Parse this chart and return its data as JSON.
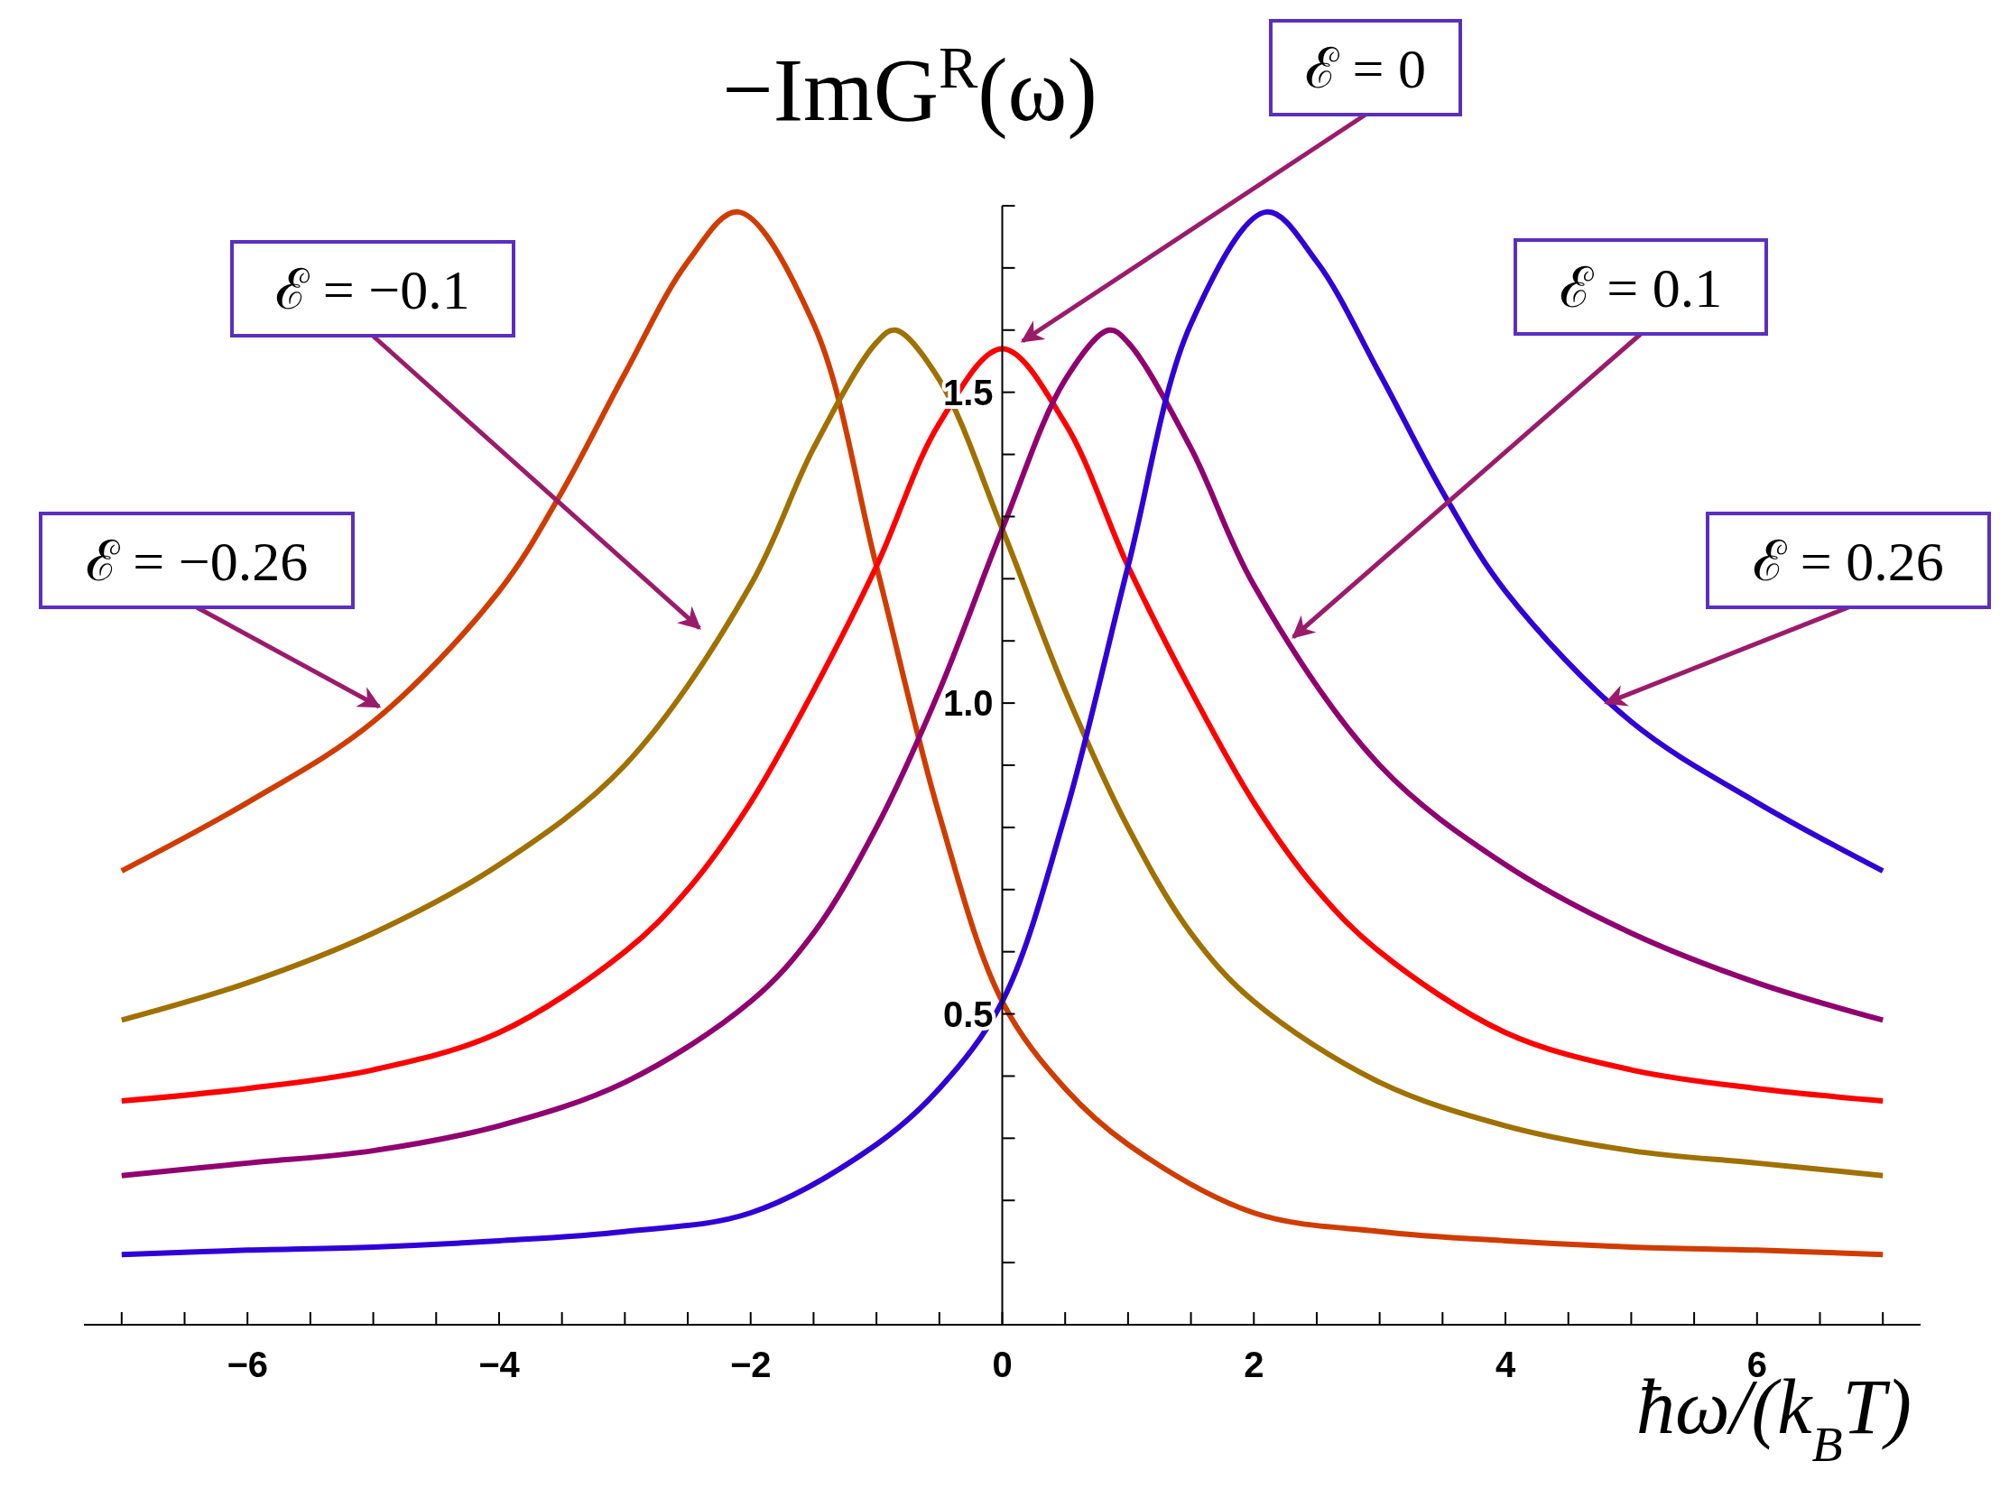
{
  "chart_data": {
    "type": "line",
    "title": "−ImG$^{R}$(ω)",
    "xlabel": "ħω/(k$_{B}$T)",
    "xlim": [
      -7.3,
      7.3
    ],
    "ylim": [
      0,
      1.8
    ],
    "xticks": [
      {
        "value": -7,
        "label": null
      },
      {
        "value": -6.5,
        "label": null
      },
      -6,
      {
        "value": -5.5,
        "label": null
      },
      {
        "value": -5,
        "label": null
      },
      {
        "value": -4.5,
        "label": null
      },
      -4,
      {
        "value": -3.5,
        "label": null
      },
      {
        "value": -3,
        "label": null
      },
      {
        "value": -2.5,
        "label": null
      },
      -2,
      {
        "value": -1.5,
        "label": null
      },
      {
        "value": -1,
        "label": null
      },
      {
        "value": -0.5,
        "label": null
      },
      0,
      {
        "value": 0.5,
        "label": null
      },
      {
        "value": 1,
        "label": null
      },
      {
        "value": 1.5,
        "label": null
      },
      2,
      {
        "value": 2.5,
        "label": null
      },
      {
        "value": 3,
        "label": null
      },
      {
        "value": 3.5,
        "label": null
      },
      4,
      {
        "value": 4.5,
        "label": null
      },
      {
        "value": 5,
        "label": null
      },
      {
        "value": 5.5,
        "label": null
      },
      6,
      {
        "value": 6.5,
        "label": null
      },
      {
        "value": 7,
        "label": null
      }
    ],
    "yticks": [
      {
        "value": 0.1,
        "label": null
      },
      {
        "value": 0.2,
        "label": null
      },
      {
        "value": 0.3,
        "label": null
      },
      {
        "value": 0.4,
        "label": null
      },
      0.5,
      {
        "value": 0.6,
        "label": null
      },
      {
        "value": 0.7,
        "label": null
      },
      {
        "value": 0.8,
        "label": null
      },
      {
        "value": 0.9,
        "label": null
      },
      {
        "value": 1,
        "label": "1.0"
      },
      {
        "value": 1.1,
        "label": null
      },
      {
        "value": 1.2,
        "label": null
      },
      {
        "value": 1.3,
        "label": null
      },
      {
        "value": 1.4,
        "label": null
      },
      1.5,
      {
        "value": 1.6,
        "label": null
      },
      {
        "value": 1.7,
        "label": null
      },
      {
        "value": 1.8,
        "label": null
      }
    ],
    "grid": false,
    "line_style": "solid",
    "series": [
      {
        "color": "#d03c00",
        "x": [
          -7,
          -6,
          -5,
          -4,
          -3.5,
          -3,
          -2.5,
          -2.1,
          -1.5,
          -1,
          -0.5,
          0,
          0.5,
          1,
          2,
          3,
          4,
          5,
          6,
          7
        ],
        "values": [
          0.73,
          0.84,
          0.97,
          1.18,
          1.34,
          1.53,
          1.71,
          1.79,
          1.61,
          1.22,
          0.82,
          0.52,
          0.38,
          0.29,
          0.18,
          0.15,
          0.135,
          0.125,
          0.12,
          0.113
        ]
      },
      {
        "color": "#a07000",
        "x": [
          -7,
          -6,
          -5,
          -4,
          -3,
          -2,
          -1.5,
          -1,
          -0.85,
          -0.5,
          0,
          0.5,
          1,
          1.5,
          2,
          3,
          4,
          5,
          6,
          7
        ],
        "values": [
          0.49,
          0.55,
          0.63,
          0.74,
          0.9,
          1.19,
          1.41,
          1.58,
          1.6,
          1.52,
          1.28,
          1.02,
          0.8,
          0.63,
          0.52,
          0.39,
          0.32,
          0.28,
          0.26,
          0.24
        ]
      },
      {
        "color": "#ff0000",
        "x": [
          -7,
          -6,
          -5,
          -4,
          -3,
          -2.5,
          -2,
          -1.5,
          -1,
          -0.5,
          0,
          0.5,
          1,
          1.5,
          2,
          2.5,
          3,
          4,
          5,
          6,
          7
        ],
        "values": [
          0.36,
          0.38,
          0.41,
          0.47,
          0.6,
          0.7,
          0.84,
          1.02,
          1.22,
          1.45,
          1.57,
          1.45,
          1.22,
          1.02,
          0.84,
          0.7,
          0.6,
          0.47,
          0.41,
          0.38,
          0.36
        ]
      },
      {
        "color": "#900070",
        "x": [
          -7,
          -6,
          -5,
          -4,
          -3,
          -2,
          -1.5,
          -1,
          -0.5,
          0,
          0.5,
          0.85,
          1,
          1.5,
          2,
          3,
          4,
          5,
          6,
          7
        ],
        "values": [
          0.24,
          0.26,
          0.28,
          0.32,
          0.39,
          0.52,
          0.63,
          0.8,
          1.02,
          1.28,
          1.52,
          1.6,
          1.58,
          1.41,
          1.19,
          0.9,
          0.74,
          0.63,
          0.55,
          0.49
        ]
      },
      {
        "color": "#3000d8",
        "x": [
          -7,
          -6,
          -5,
          -4,
          -3,
          -2,
          -1,
          -0.5,
          0,
          0.5,
          1,
          1.5,
          2.1,
          2.5,
          3,
          3.5,
          4,
          5,
          6,
          7
        ],
        "values": [
          0.113,
          0.12,
          0.125,
          0.135,
          0.15,
          0.18,
          0.29,
          0.38,
          0.52,
          0.82,
          1.22,
          1.61,
          1.79,
          1.71,
          1.53,
          1.34,
          1.18,
          0.97,
          0.84,
          0.73
        ]
      }
    ],
    "annotations": [
      "ℰ = −0.26",
      "ℰ = −0.1",
      "ℰ = 0",
      "ℰ = 0.1",
      {
        "text": "ℰ = 0.26",
        "x": 4.8,
        "y": 1.0
      }
    ]
  }
}
